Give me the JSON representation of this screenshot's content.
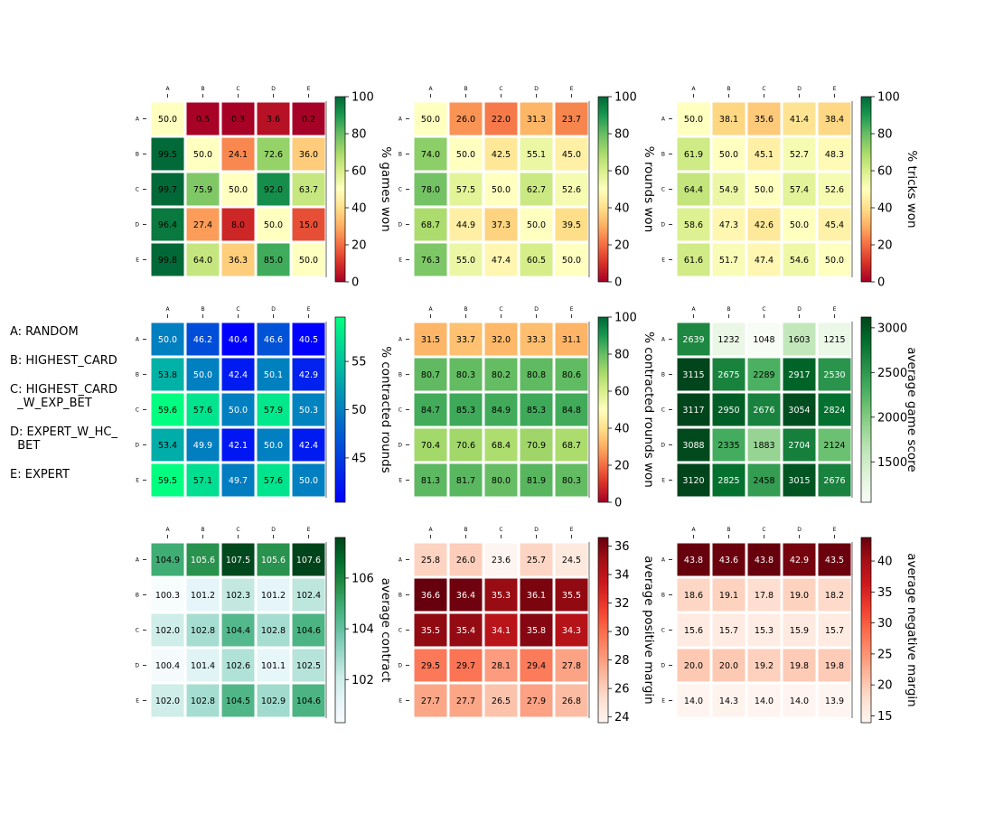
{
  "legend": [
    "A: RANDOM",
    "B: HIGHEST_CARD",
    "C: HIGHEST_CARD\n  _W_EXP_BET",
    "D: EXPERT_W_HC_\n  BET",
    "E: EXPERT"
  ],
  "chart_data": [
    {
      "type": "heatmap",
      "categories": [
        "A",
        "B",
        "C",
        "D",
        "E"
      ],
      "colorbar_label": "% games won",
      "colormap": "RdYlGn",
      "clim": [
        0,
        100
      ],
      "colorbar_ticks": [
        "0",
        "20",
        "40",
        "60",
        "80",
        "100"
      ],
      "values": [
        [
          50.0,
          0.5,
          0.3,
          3.6,
          0.2
        ],
        [
          99.5,
          50.0,
          24.1,
          72.6,
          36.0
        ],
        [
          99.7,
          75.9,
          50.0,
          92.0,
          63.7
        ],
        [
          96.4,
          27.4,
          8.0,
          50.0,
          15.0
        ],
        [
          99.8,
          64.0,
          36.3,
          85.0,
          50.0
        ]
      ]
    },
    {
      "type": "heatmap",
      "categories": [
        "A",
        "B",
        "C",
        "D",
        "E"
      ],
      "colorbar_label": "% rounds won",
      "colormap": "RdYlGn",
      "clim": [
        0,
        100
      ],
      "colorbar_ticks": [
        "0",
        "20",
        "40",
        "60",
        "80",
        "100"
      ],
      "values": [
        [
          50.0,
          26.0,
          22.0,
          31.3,
          23.7
        ],
        [
          74.0,
          50.0,
          42.5,
          55.1,
          45.0
        ],
        [
          78.0,
          57.5,
          50.0,
          62.7,
          52.6
        ],
        [
          68.7,
          44.9,
          37.3,
          50.0,
          39.5
        ],
        [
          76.3,
          55.0,
          47.4,
          60.5,
          50.0
        ]
      ]
    },
    {
      "type": "heatmap",
      "categories": [
        "A",
        "B",
        "C",
        "D",
        "E"
      ],
      "colorbar_label": "% tricks won",
      "colormap": "RdYlGn",
      "clim": [
        0,
        100
      ],
      "colorbar_ticks": [
        "0",
        "20",
        "40",
        "60",
        "80",
        "100"
      ],
      "values": [
        [
          50.0,
          38.1,
          35.6,
          41.4,
          38.4
        ],
        [
          61.9,
          50.0,
          45.1,
          52.7,
          48.3
        ],
        [
          64.4,
          54.9,
          50.0,
          57.4,
          52.6
        ],
        [
          58.6,
          47.3,
          42.6,
          50.0,
          45.4
        ],
        [
          61.6,
          51.7,
          47.4,
          54.6,
          50.0
        ]
      ]
    },
    {
      "type": "heatmap",
      "categories": [
        "A",
        "B",
        "C",
        "D",
        "E"
      ],
      "colorbar_label": "% contracted rounds",
      "colormap": "winter",
      "clim": [
        40.4,
        59.6
      ],
      "colorbar_ticks": [
        "45",
        "50",
        "55"
      ],
      "values": [
        [
          50.0,
          46.2,
          40.4,
          46.6,
          40.5
        ],
        [
          53.8,
          50.0,
          42.4,
          50.1,
          42.9
        ],
        [
          59.6,
          57.6,
          50.0,
          57.9,
          50.3
        ],
        [
          53.4,
          49.9,
          42.1,
          50.0,
          42.4
        ],
        [
          59.5,
          57.1,
          49.7,
          57.6,
          50.0
        ]
      ]
    },
    {
      "type": "heatmap",
      "categories": [
        "A",
        "B",
        "C",
        "D",
        "E"
      ],
      "colorbar_label": "% contracted rounds won",
      "colormap": "RdYlGn",
      "clim": [
        0,
        100
      ],
      "colorbar_ticks": [
        "0",
        "20",
        "40",
        "60",
        "80",
        "100"
      ],
      "values": [
        [
          31.5,
          33.7,
          32.0,
          33.3,
          31.1
        ],
        [
          80.7,
          80.3,
          80.2,
          80.8,
          80.6
        ],
        [
          84.7,
          85.3,
          84.9,
          85.3,
          84.8
        ],
        [
          70.4,
          70.6,
          68.4,
          70.9,
          68.7
        ],
        [
          81.3,
          81.7,
          80.0,
          81.9,
          80.3
        ]
      ]
    },
    {
      "type": "heatmap",
      "categories": [
        "A",
        "B",
        "C",
        "D",
        "E"
      ],
      "colorbar_label": "average game score",
      "colormap": "Greens",
      "clim": [
        1048,
        3120
      ],
      "colorbar_ticks": [
        "1500",
        "2000",
        "2500",
        "3000"
      ],
      "values": [
        [
          2639,
          1232,
          1048,
          1603,
          1215
        ],
        [
          3115,
          2675,
          2289,
          2917,
          2530
        ],
        [
          3117,
          2950,
          2676,
          3054,
          2824
        ],
        [
          3088,
          2335,
          1883,
          2704,
          2124
        ],
        [
          3120,
          2825,
          2458,
          3015,
          2676
        ]
      ]
    },
    {
      "type": "heatmap",
      "categories": [
        "A",
        "B",
        "C",
        "D",
        "E"
      ],
      "colorbar_label": "average contract",
      "colormap": "BuGn",
      "clim": [
        100.3,
        107.6
      ],
      "colorbar_ticks": [
        "102",
        "104",
        "106"
      ],
      "values": [
        [
          104.9,
          105.6,
          107.5,
          105.6,
          107.6
        ],
        [
          100.3,
          101.2,
          102.3,
          101.2,
          102.4
        ],
        [
          102.0,
          102.8,
          104.4,
          102.8,
          104.6
        ],
        [
          100.4,
          101.4,
          102.6,
          101.1,
          102.5
        ],
        [
          102.0,
          102.8,
          104.5,
          102.9,
          104.6
        ]
      ]
    },
    {
      "type": "heatmap",
      "categories": [
        "A",
        "B",
        "C",
        "D",
        "E"
      ],
      "colorbar_label": "average positive margin",
      "colormap": "Reds",
      "clim": [
        23.6,
        36.6
      ],
      "colorbar_ticks": [
        "24",
        "26",
        "28",
        "30",
        "32",
        "34",
        "36"
      ],
      "values": [
        [
          25.8,
          26.0,
          23.6,
          25.7,
          24.5
        ],
        [
          36.6,
          36.4,
          35.3,
          36.1,
          35.5
        ],
        [
          35.5,
          35.4,
          34.1,
          35.8,
          34.3
        ],
        [
          29.5,
          29.7,
          28.1,
          29.4,
          27.8
        ],
        [
          27.7,
          27.7,
          26.5,
          27.9,
          26.8
        ]
      ]
    },
    {
      "type": "heatmap",
      "categories": [
        "A",
        "B",
        "C",
        "D",
        "E"
      ],
      "colorbar_label": "average negative margin",
      "colormap": "Reds",
      "clim": [
        13.9,
        43.8
      ],
      "colorbar_ticks": [
        "15",
        "20",
        "25",
        "30",
        "35",
        "40"
      ],
      "values": [
        [
          43.8,
          43.6,
          43.8,
          42.9,
          43.5
        ],
        [
          18.6,
          19.1,
          17.8,
          19.0,
          18.2
        ],
        [
          15.6,
          15.7,
          15.3,
          15.9,
          15.7
        ],
        [
          20.0,
          20.0,
          19.2,
          19.8,
          19.8
        ],
        [
          14.0,
          14.3,
          14.0,
          14.0,
          13.9
        ]
      ]
    }
  ]
}
